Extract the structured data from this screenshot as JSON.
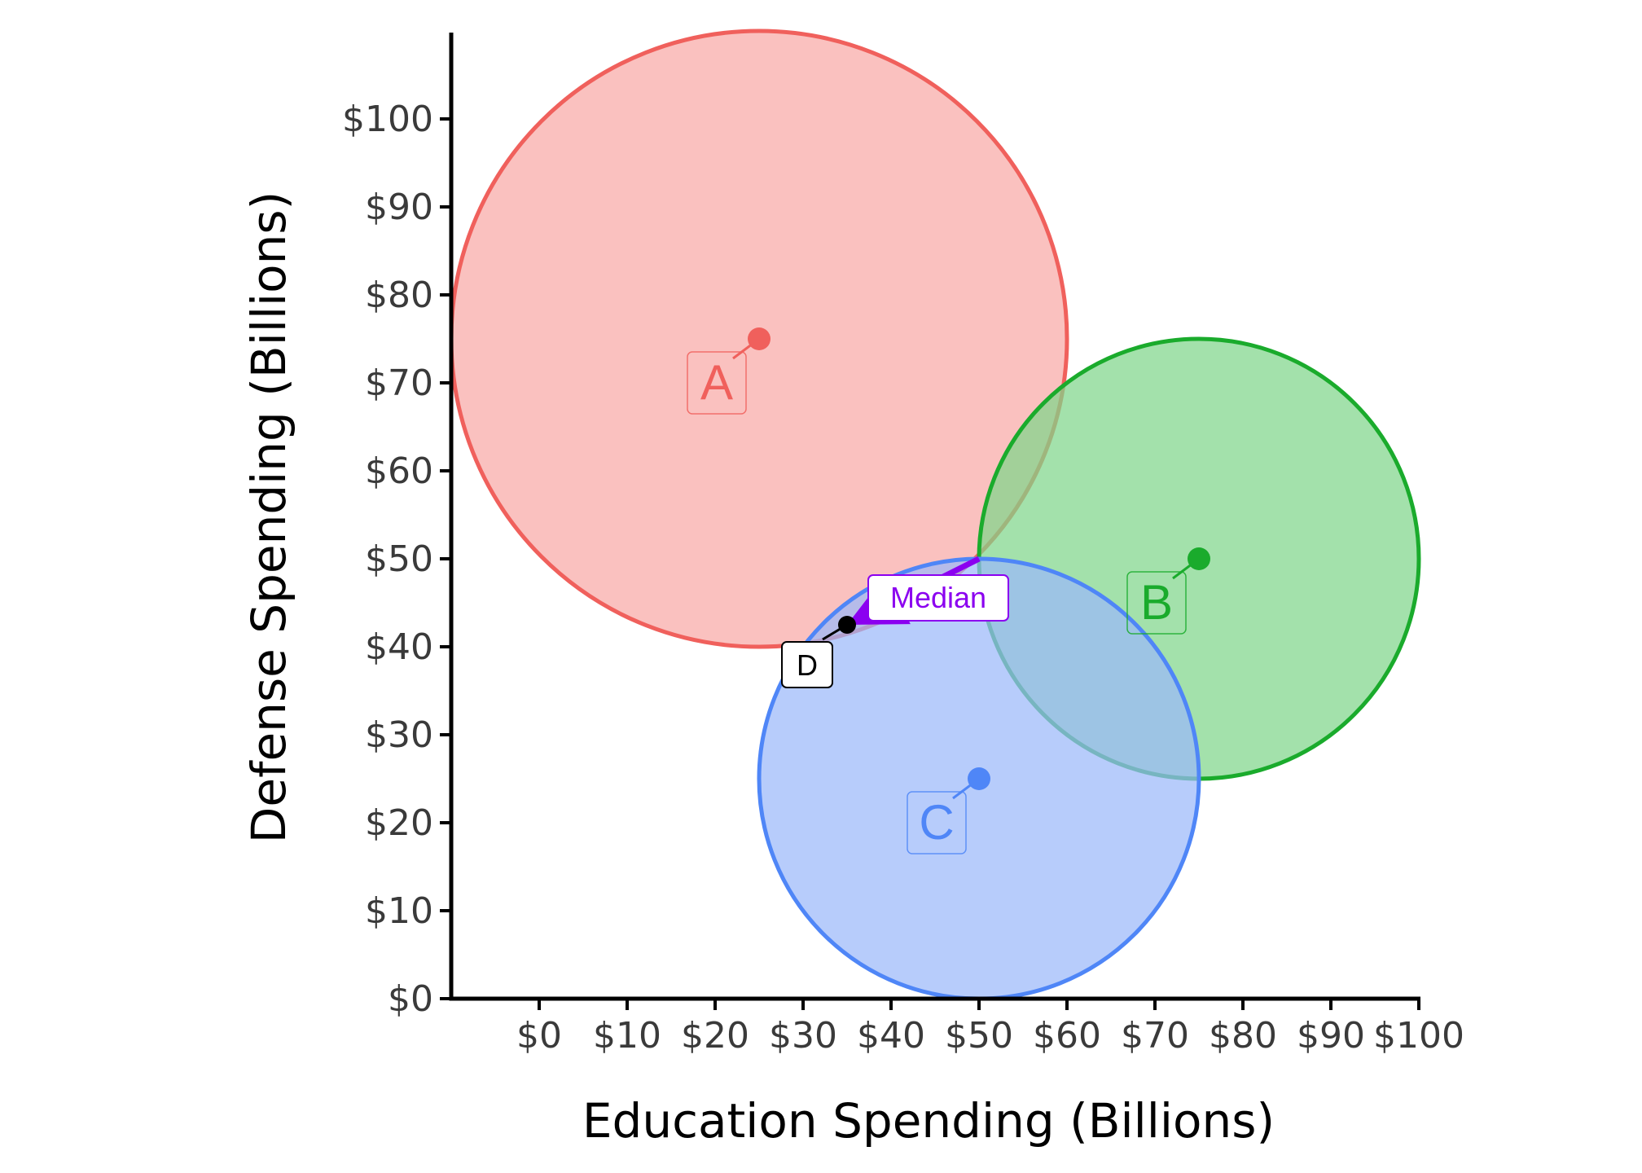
{
  "chart_data": {
    "type": "scatter",
    "xlabel": "Education Spending (Billions)",
    "ylabel": "Defense Spending (Billions)",
    "xlim": [
      -10,
      100
    ],
    "ylim": [
      0,
      100
    ],
    "x_ticks": [
      {
        "value": 0,
        "label": "$0"
      },
      {
        "value": 10,
        "label": "$10"
      },
      {
        "value": 20,
        "label": "$20"
      },
      {
        "value": 30,
        "label": "$30"
      },
      {
        "value": 40,
        "label": "$40"
      },
      {
        "value": 50,
        "label": "$50"
      },
      {
        "value": 60,
        "label": "$60"
      },
      {
        "value": 70,
        "label": "$70"
      },
      {
        "value": 80,
        "label": "$80"
      },
      {
        "value": 90,
        "label": "$90"
      },
      {
        "value": 100,
        "label": "$100"
      }
    ],
    "y_ticks": [
      {
        "value": 0,
        "label": "$0"
      },
      {
        "value": 10,
        "label": "$10"
      },
      {
        "value": 20,
        "label": "$20"
      },
      {
        "value": 30,
        "label": "$30"
      },
      {
        "value": 40,
        "label": "$40"
      },
      {
        "value": 50,
        "label": "$50"
      },
      {
        "value": 60,
        "label": "$60"
      },
      {
        "value": 70,
        "label": "$70"
      },
      {
        "value": 80,
        "label": "$80"
      },
      {
        "value": 90,
        "label": "$90"
      },
      {
        "value": 100,
        "label": "$100"
      }
    ],
    "grid": false,
    "points": [
      {
        "label": "A",
        "x": 25,
        "y": 75,
        "radius": 35,
        "color": "#f0605c",
        "fill": "#f8a9a6"
      },
      {
        "label": "B",
        "x": 75,
        "y": 50,
        "radius": 25,
        "color": "#1aab2c",
        "fill": "#7fd68a"
      },
      {
        "label": "C",
        "x": 50,
        "y": 25,
        "radius": 25,
        "color": "#4f86f7",
        "fill": "#9bb9fa"
      }
    ],
    "median_point": {
      "label": "D",
      "x": 35,
      "y": 42.5,
      "color": "#000000"
    },
    "arrow": {
      "label": "Median",
      "from": [
        50,
        50
      ],
      "to": [
        35,
        42.5
      ],
      "color": "#8b00f0"
    }
  }
}
